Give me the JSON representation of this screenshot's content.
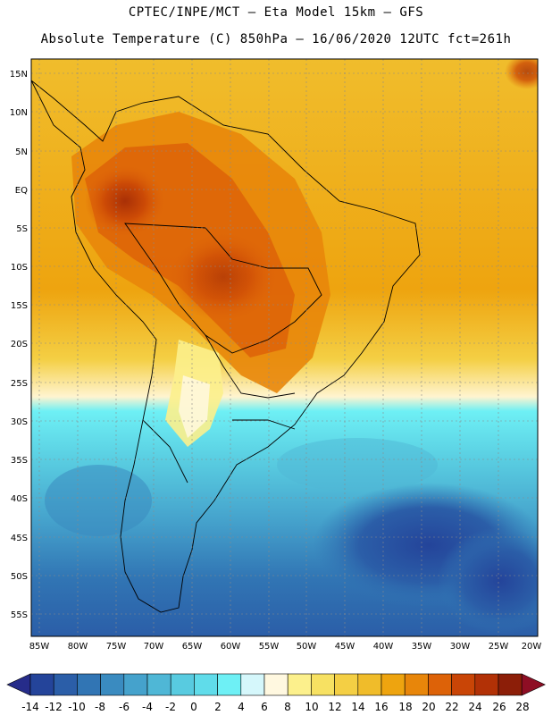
{
  "header": {
    "title_line1": "CPTEC/INPE/MCT –  Eta Model 15km – GFS",
    "title_line2": "Absolute Temperature (C) 850hPa – 16/06/2020 12UTC fct=261h"
  },
  "map": {
    "lat_labels": [
      "15N",
      "10N",
      "5N",
      "EQ",
      "5S",
      "10S",
      "15S",
      "20S",
      "25S",
      "30S",
      "35S",
      "40S",
      "45S",
      "50S",
      "55S"
    ],
    "lon_labels": [
      "85W",
      "80W",
      "75W",
      "70W",
      "65W",
      "60W",
      "55W",
      "50W",
      "45W",
      "40W",
      "35W",
      "30W",
      "25W",
      "20W"
    ]
  },
  "colorbar": {
    "ticks": [
      "-14",
      "-12",
      "-10",
      "-8",
      "-6",
      "-4",
      "-2",
      "0",
      "2",
      "4",
      "6",
      "8",
      "10",
      "12",
      "14",
      "16",
      "18",
      "20",
      "22",
      "24",
      "26",
      "28"
    ],
    "colors": [
      "#24449a",
      "#2b5ea8",
      "#3175b4",
      "#3a8bc0",
      "#45a2cc",
      "#4fb7d6",
      "#58cbe0",
      "#60dcea",
      "#6ef0f5",
      "#d5f7fb",
      "#fff8e0",
      "#fcf08c",
      "#f7e162",
      "#f4cf44",
      "#f0bc2a",
      "#eea40f",
      "#e8860a",
      "#dd6208",
      "#c94506",
      "#b23106",
      "#8c1e08"
    ],
    "end_low_color": "#262c8a",
    "end_high_color": "#8e0e24"
  }
}
